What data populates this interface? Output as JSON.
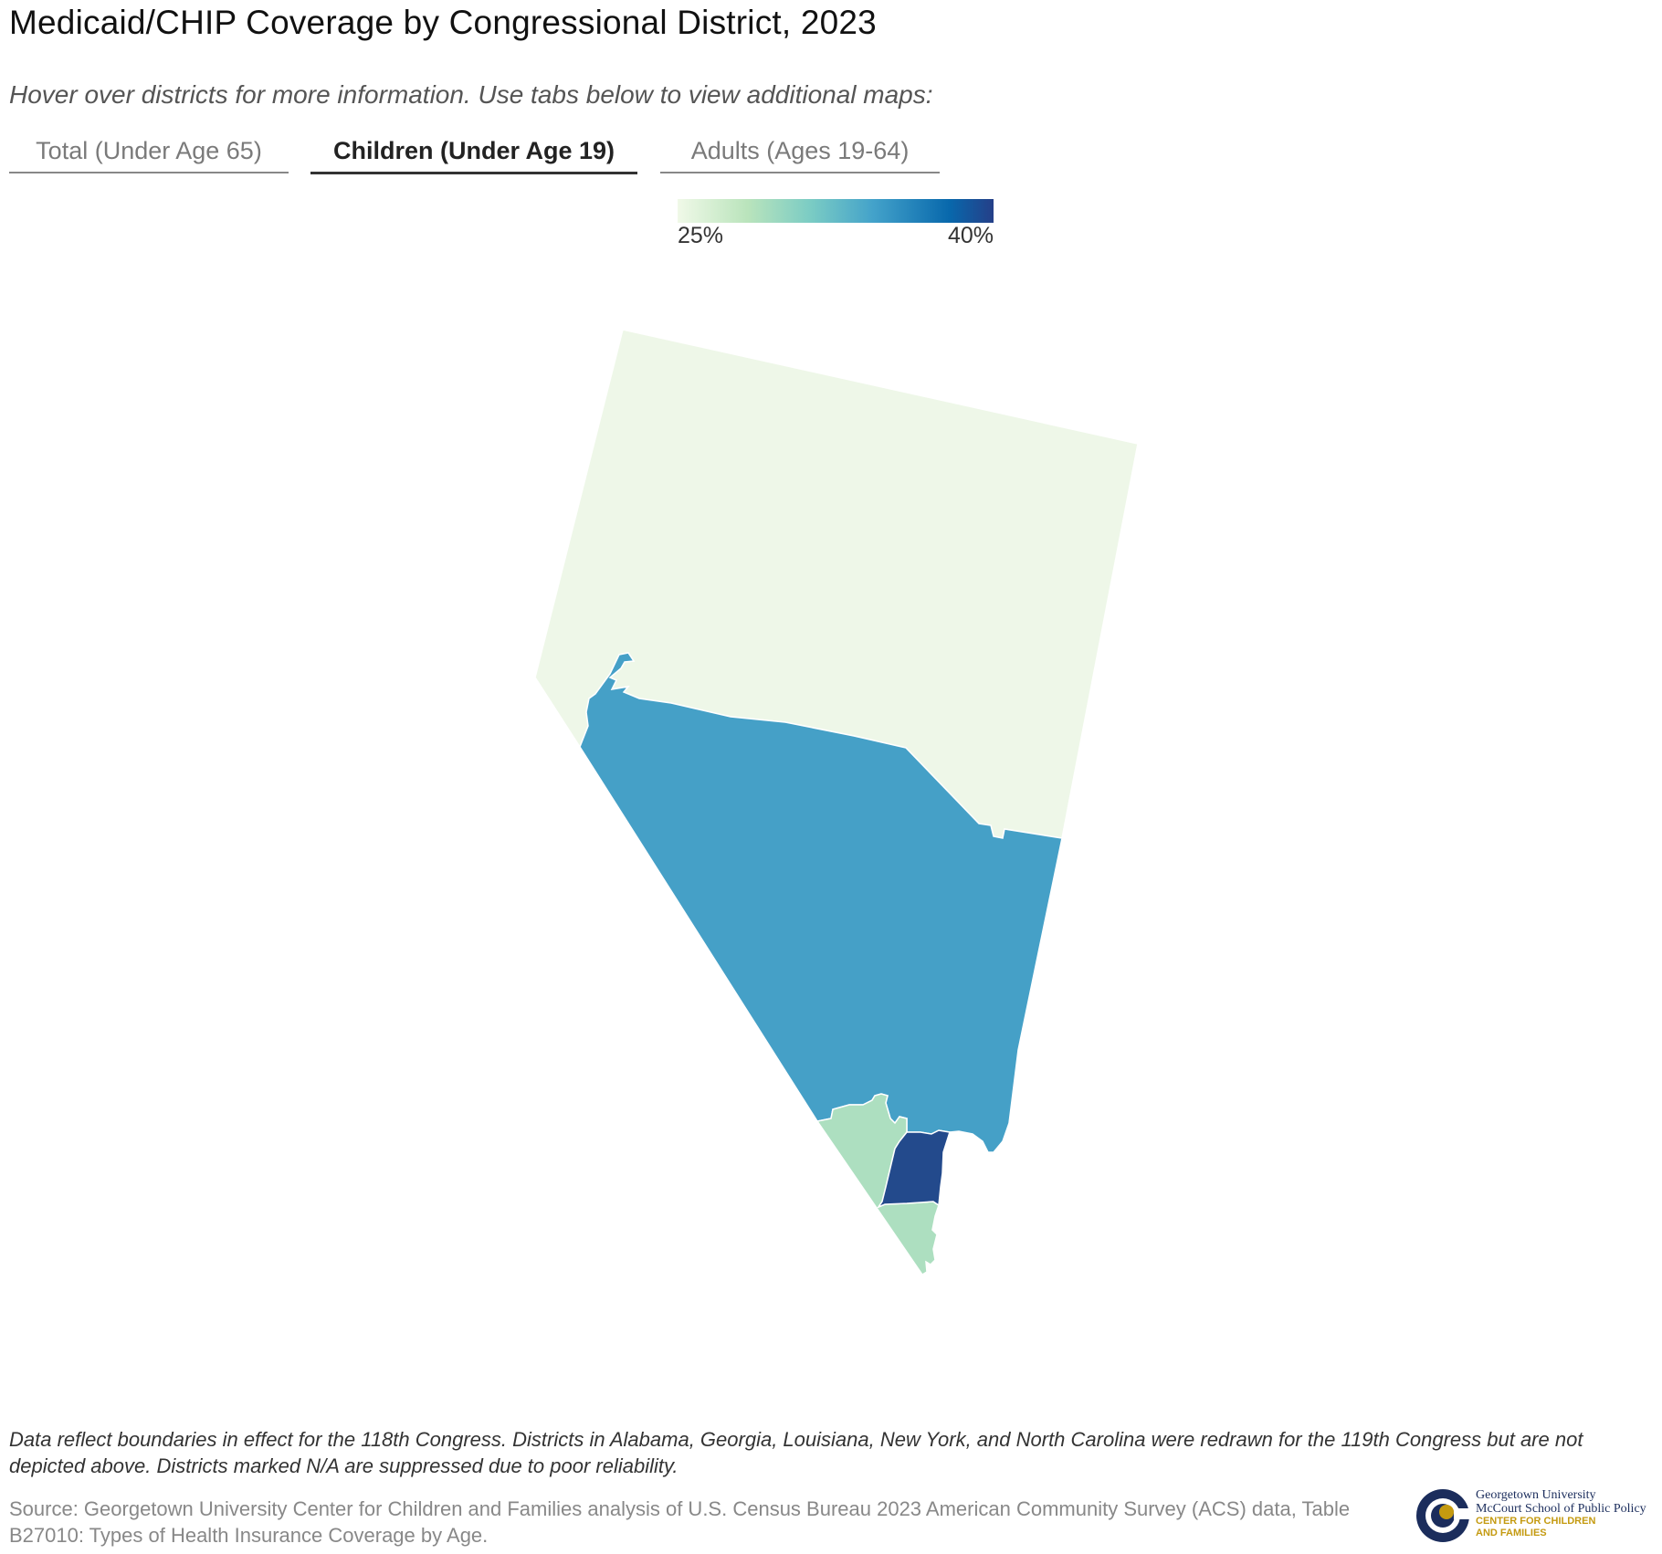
{
  "title": "Medicaid/CHIP Coverage by Congressional District, 2023",
  "subtitle": "Hover over districts for more information. Use tabs below to view additional maps:",
  "tabs": [
    {
      "label": "Total (Under Age 65)",
      "active": false
    },
    {
      "label": "Children (Under Age 19)",
      "active": true
    },
    {
      "label": "Adults (Ages 19-64)",
      "active": false
    }
  ],
  "legend": {
    "min_label": "25%",
    "max_label": "40%",
    "min": 25,
    "max": 40,
    "colors": [
      "#f0f9e8",
      "#bae4bc",
      "#7bccc4",
      "#43a2ca",
      "#0868ac",
      "#253f88"
    ]
  },
  "map": {
    "state": "Nevada",
    "districts": [
      {
        "id": "NV-2",
        "color": "#eef7e8"
      },
      {
        "id": "NV-4",
        "color": "#45a0c7"
      },
      {
        "id": "NV-3",
        "color": "#addfc0"
      },
      {
        "id": "NV-1",
        "color": "#234a8c"
      }
    ]
  },
  "footer": {
    "note": "Data reflect boundaries in effect for the 118th Congress. Districts in Alabama, Georgia, Louisiana, New York, and North Carolina were redrawn for the 119th Congress but are not depicted above. Districts marked N/A are suppressed due to poor reliability.",
    "source": "Source: Georgetown University Center for Children and Families analysis of U.S. Census Bureau 2023 American Community Survey (ACS) data, Table B27010: Types of Health Insurance Coverage by Age."
  },
  "logo": {
    "line1": "Georgetown University",
    "line2": "McCourt School of Public Policy",
    "line3": "CENTER FOR CHILDREN",
    "line4": "AND FAMILIES",
    "colors": {
      "navy": "#1b2d5c",
      "gold": "#c49a10"
    }
  }
}
